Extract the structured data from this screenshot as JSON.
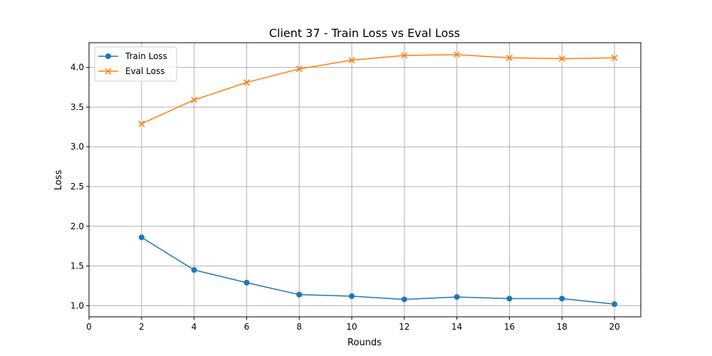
{
  "chart_data": {
    "type": "line",
    "title": "Client 37 - Train Loss vs Eval Loss",
    "xlabel": "Rounds",
    "ylabel": "Loss",
    "xlim": [
      0,
      21
    ],
    "ylim": [
      0.86,
      4.31
    ],
    "xticks": [
      0,
      2,
      4,
      6,
      8,
      10,
      12,
      14,
      16,
      18,
      20
    ],
    "yticks": [
      1.0,
      1.5,
      2.0,
      2.5,
      3.0,
      3.5,
      4.0
    ],
    "grid": true,
    "legend_position": "top-left",
    "x": [
      2,
      4,
      6,
      8,
      10,
      12,
      14,
      16,
      18,
      20
    ],
    "series": [
      {
        "name": "Train Loss",
        "marker": "circle",
        "color": "#1f77b4",
        "values": [
          1.86,
          1.45,
          1.29,
          1.14,
          1.12,
          1.08,
          1.11,
          1.09,
          1.09,
          1.02
        ]
      },
      {
        "name": "Eval Loss",
        "marker": "x",
        "color": "#ff7f0e",
        "values": [
          3.29,
          3.59,
          3.81,
          3.98,
          4.09,
          4.15,
          4.16,
          4.12,
          4.11,
          4.12
        ]
      }
    ]
  }
}
